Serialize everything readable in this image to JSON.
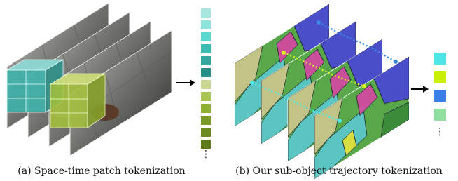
{
  "panels": [
    {
      "caption": "(a) Space-time patch tokenization",
      "ellipsis": "⋮"
    },
    {
      "caption": "(b) Our sub-object trajectory tokenization",
      "ellipsis": "⋮"
    }
  ]
}
